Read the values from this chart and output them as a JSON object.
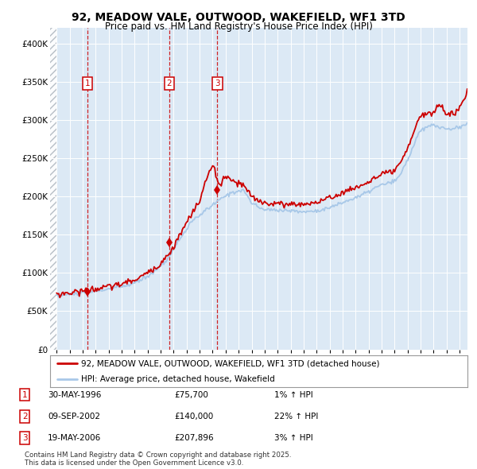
{
  "title": "92, MEADOW VALE, OUTWOOD, WAKEFIELD, WF1 3TD",
  "subtitle": "Price paid vs. HM Land Registry's House Price Index (HPI)",
  "hpi_color": "#a8c8e8",
  "price_color": "#cc0000",
  "sale_marker_color": "#cc0000",
  "dashed_line_color": "#cc0000",
  "background_color": "#ffffff",
  "plot_bg_color": "#dce9f5",
  "grid_color": "#ffffff",
  "ylim": [
    0,
    420000
  ],
  "yticks": [
    0,
    50000,
    100000,
    150000,
    200000,
    250000,
    300000,
    350000,
    400000
  ],
  "ytick_labels": [
    "£0",
    "£50K",
    "£100K",
    "£150K",
    "£200K",
    "£250K",
    "£300K",
    "£350K",
    "£400K"
  ],
  "sales": [
    {
      "num": 1,
      "date_x": 1996.37,
      "price": 75700,
      "label": "1",
      "row": "30-MAY-1996",
      "price_str": "£75,700",
      "hpi_str": "1% ↑ HPI"
    },
    {
      "num": 2,
      "date_x": 2002.67,
      "price": 140000,
      "label": "2",
      "row": "09-SEP-2002",
      "price_str": "£140,000",
      "hpi_str": "22% ↑ HPI"
    },
    {
      "num": 3,
      "date_x": 2006.37,
      "price": 207896,
      "label": "3",
      "row": "19-MAY-2006",
      "price_str": "£207,896",
      "hpi_str": "3% ↑ HPI"
    }
  ],
  "legend_line1": "92, MEADOW VALE, OUTWOOD, WAKEFIELD, WF1 3TD (detached house)",
  "legend_line2": "HPI: Average price, detached house, Wakefield",
  "footnote": "Contains HM Land Registry data © Crown copyright and database right 2025.\nThis data is licensed under the Open Government Licence v3.0.",
  "xlim_start": 1993.5,
  "xlim_end": 2025.6
}
